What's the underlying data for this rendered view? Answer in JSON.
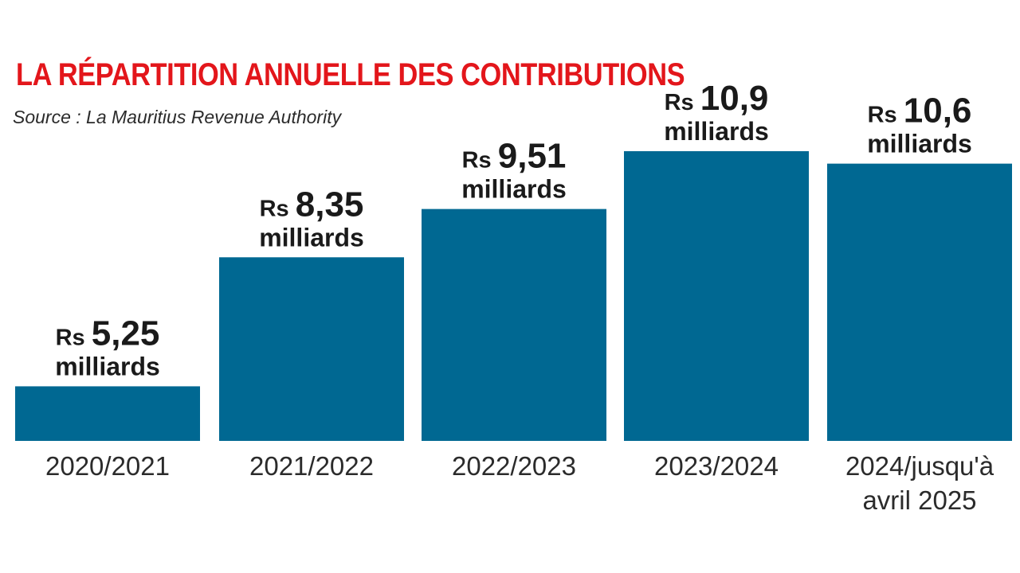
{
  "chart_title": "LA RÉPARTITION ANNUELLE DES CONTRIBUTIONS",
  "source": "Source : La Mauritius Revenue Authority",
  "colors": {
    "title": "#e3161b",
    "bar": "#006892",
    "text": "#1a1a1a"
  },
  "chart_data": {
    "type": "bar",
    "title": "LA RÉPARTITION ANNUELLE DES CONTRIBUTIONS",
    "xlabel": "",
    "ylabel": "",
    "unit": "Rs milliards",
    "ylim": [
      0,
      11
    ],
    "grid": false,
    "categories": [
      [
        "2020/2021"
      ],
      [
        "2021/2022"
      ],
      [
        "2022/2023"
      ],
      [
        "2023/2024"
      ],
      [
        "2024/jusqu'à",
        "avril 2025"
      ]
    ],
    "values": [
      5.25,
      8.35,
      9.51,
      10.9,
      10.6
    ],
    "value_labels": [
      {
        "prefix": "Rs",
        "number": "5,25",
        "unit": "milliards"
      },
      {
        "prefix": "Rs",
        "number": "8,35",
        "unit": "milliards"
      },
      {
        "prefix": "Rs",
        "number": "9,51",
        "unit": "milliards"
      },
      {
        "prefix": "Rs",
        "number": "10,9",
        "unit": "milliards"
      },
      {
        "prefix": "Rs",
        "number": "10,6",
        "unit": "milliards"
      }
    ]
  }
}
